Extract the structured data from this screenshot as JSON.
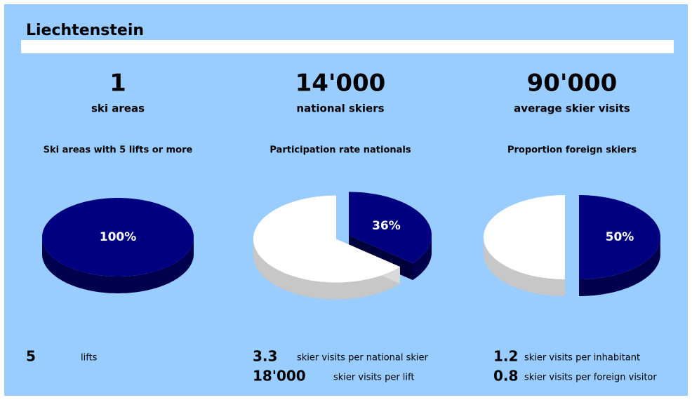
{
  "header": {
    "title": "Liechtenstein"
  },
  "kpis": [
    {
      "value": "1",
      "label": "ski areas"
    },
    {
      "value": "14'000",
      "label": "national skiers"
    },
    {
      "value": "90'000",
      "label": "average skier visits"
    }
  ],
  "chart_data": [
    {
      "type": "pie",
      "title": "Ski areas with 5 lifts or more",
      "values": [
        100
      ],
      "value_labels": [
        "100%"
      ],
      "colors": [
        "#000080"
      ],
      "explode": false
    },
    {
      "type": "pie",
      "title": "Participation rate nationals",
      "values": [
        36,
        64
      ],
      "value_labels": [
        "36%",
        null
      ],
      "colors": [
        "#000080",
        "#ffffff"
      ],
      "explode": true
    },
    {
      "type": "pie",
      "title": "Proportion foreign skiers",
      "values": [
        50,
        50
      ],
      "value_labels": [
        "50%",
        null
      ],
      "colors": [
        "#000080",
        "#ffffff"
      ],
      "explode": true
    }
  ],
  "stats": [
    [
      {
        "value": "5",
        "label": "lifts"
      }
    ],
    [
      {
        "value": "3.3",
        "label": "skier visits per national skier"
      },
      {
        "value": "18'000",
        "label": "skier visits per lift"
      }
    ],
    [
      {
        "value": "1.2",
        "label": "skier visits per inhabitant"
      },
      {
        "value": "0.8",
        "label": "skier visits per foreign visitor"
      }
    ]
  ]
}
